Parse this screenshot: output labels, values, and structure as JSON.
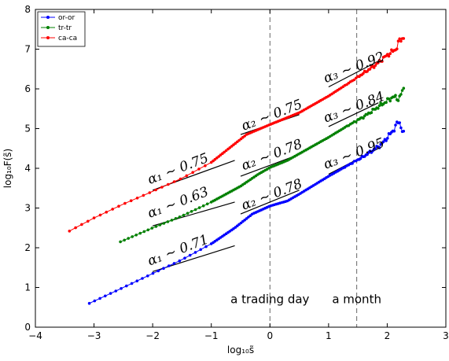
{
  "chart_data": {
    "type": "scatter",
    "xlabel": "log₁₀s̃",
    "ylabel": "log₁₀F(s̃)",
    "xlim": [
      -4,
      3
    ],
    "ylim": [
      0,
      8
    ],
    "xticks": [
      "−4",
      "−3",
      "−2",
      "−1",
      "0",
      "1",
      "2",
      "3"
    ],
    "yticks": [
      "0",
      "1",
      "2",
      "3",
      "4",
      "5",
      "6",
      "7",
      "8"
    ],
    "grid": false,
    "legend_position": "top-left",
    "series": [
      {
        "name": "or-or",
        "color": "#0000ff",
        "knots": [
          [
            -3.08,
            0.6
          ],
          [
            -2.5,
            1.0
          ],
          [
            -2.0,
            1.35
          ],
          [
            -1.5,
            1.7
          ],
          [
            -1.0,
            2.1
          ],
          [
            -0.6,
            2.5
          ],
          [
            -0.3,
            2.85
          ],
          [
            0.0,
            3.05
          ],
          [
            0.3,
            3.18
          ],
          [
            0.5,
            3.35
          ],
          [
            0.8,
            3.62
          ],
          [
            1.0,
            3.8
          ],
          [
            1.3,
            4.05
          ],
          [
            1.6,
            4.3
          ],
          [
            1.9,
            4.6
          ],
          [
            2.1,
            4.95
          ],
          [
            2.2,
            5.2
          ],
          [
            2.28,
            4.85
          ]
        ]
      },
      {
        "name": "tr-tr",
        "color": "#008000",
        "knots": [
          [
            -2.55,
            2.15
          ],
          [
            -2.0,
            2.5
          ],
          [
            -1.5,
            2.8
          ],
          [
            -1.0,
            3.15
          ],
          [
            -0.5,
            3.55
          ],
          [
            -0.2,
            3.85
          ],
          [
            0.0,
            4.02
          ],
          [
            0.3,
            4.2
          ],
          [
            0.6,
            4.45
          ],
          [
            1.0,
            4.78
          ],
          [
            1.3,
            5.05
          ],
          [
            1.6,
            5.3
          ],
          [
            1.9,
            5.6
          ],
          [
            2.1,
            5.8
          ],
          [
            2.2,
            5.75
          ],
          [
            2.28,
            6.0
          ]
        ]
      },
      {
        "name": "ca-ca",
        "color": "#ff0000",
        "knots": [
          [
            -3.42,
            2.42
          ],
          [
            -3.0,
            2.75
          ],
          [
            -2.5,
            3.1
          ],
          [
            -2.0,
            3.42
          ],
          [
            -1.5,
            3.75
          ],
          [
            -1.0,
            4.15
          ],
          [
            -0.7,
            4.5
          ],
          [
            -0.4,
            4.85
          ],
          [
            0.0,
            5.1
          ],
          [
            0.5,
            5.4
          ],
          [
            1.0,
            5.82
          ],
          [
            1.4,
            6.2
          ],
          [
            1.8,
            6.6
          ],
          [
            2.0,
            6.85
          ],
          [
            2.15,
            7.0
          ],
          [
            2.2,
            7.2
          ],
          [
            2.28,
            7.3
          ]
        ]
      }
    ],
    "annotations": [
      {
        "text": "α₁ ∼ 0.75",
        "x": -2.05,
        "y": 3.6
      },
      {
        "text": "α₂ ∼ 0.75",
        "x": -0.45,
        "y": 4.95
      },
      {
        "text": "α₃ ∼ 0.92",
        "x": 0.95,
        "y": 6.15
      },
      {
        "text": "α₁ ∼ 0.63",
        "x": -2.05,
        "y": 2.75
      },
      {
        "text": "α₂ ∼ 0.78",
        "x": -0.45,
        "y": 3.95
      },
      {
        "text": "α₃ ∼ 0.84",
        "x": 0.95,
        "y": 5.15
      },
      {
        "text": "α₁ ∼ 0.71",
        "x": -2.05,
        "y": 1.55
      },
      {
        "text": "α₂ ∼ 0.78",
        "x": -0.45,
        "y": 2.95
      },
      {
        "text": "α₃ ∼ 0.95",
        "x": 0.95,
        "y": 3.98
      }
    ],
    "fit_lines": [
      {
        "x": [
          -2.0,
          -0.6
        ],
        "y": [
          3.45,
          4.2
        ]
      },
      {
        "x": [
          -0.5,
          0.5
        ],
        "y": [
          4.85,
          5.35
        ]
      },
      {
        "x": [
          1.0,
          1.85
        ],
        "y": [
          6.05,
          6.7
        ]
      },
      {
        "x": [
          -2.0,
          -0.6
        ],
        "y": [
          2.55,
          3.15
        ]
      },
      {
        "x": [
          -0.5,
          0.5
        ],
        "y": [
          3.8,
          4.35
        ]
      },
      {
        "x": [
          1.0,
          1.85
        ],
        "y": [
          5.05,
          5.65
        ]
      },
      {
        "x": [
          -2.0,
          -0.6
        ],
        "y": [
          1.4,
          2.05
        ]
      },
      {
        "x": [
          -0.5,
          0.5
        ],
        "y": [
          2.85,
          3.45
        ]
      },
      {
        "x": [
          1.0,
          1.85
        ],
        "y": [
          3.85,
          4.5
        ]
      }
    ],
    "vlines": [
      {
        "x": 0,
        "label": "a trading day",
        "label_y": 0.7
      },
      {
        "x": 1.48,
        "label": "a month",
        "label_y": 0.7
      }
    ]
  }
}
